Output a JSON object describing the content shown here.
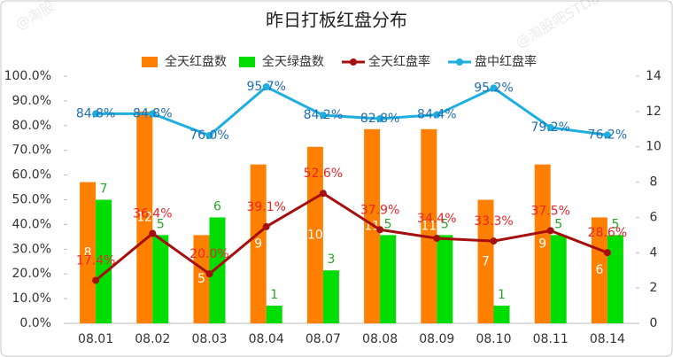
{
  "chart_data": {
    "type": "bar-line",
    "title": "昨日打板红盘分布",
    "categories": [
      "08.01",
      "08.02",
      "08.03",
      "08.04",
      "08.07",
      "08.08",
      "08.09",
      "08.10",
      "08.11",
      "08.14"
    ],
    "series": [
      {
        "name": "全天红盘数",
        "type": "bar",
        "axis": "y2",
        "color": "#ff8000",
        "values": [
          8,
          12,
          5,
          9,
          10,
          11,
          11,
          7,
          9,
          6
        ]
      },
      {
        "name": "全天绿盘数",
        "type": "bar",
        "axis": "y2",
        "color": "#00dd00",
        "values": [
          7,
          5,
          6,
          1,
          3,
          5,
          5,
          1,
          5,
          5
        ]
      },
      {
        "name": "全天红盘率",
        "type": "line",
        "color": "#a50f0f",
        "label_color": "#e8262b",
        "values": [
          17.4,
          36.4,
          20.0,
          39.1,
          52.6,
          37.9,
          34.4,
          33.3,
          37.5,
          28.6
        ],
        "value_labels": [
          "17.4%",
          "36.4%",
          "20.0%",
          "39.1%",
          "52.6%",
          "37.9%",
          "34.4%",
          "33.3%",
          "37.5%",
          "28.6%"
        ]
      },
      {
        "name": "盘中红盘率",
        "type": "line",
        "color": "#1eaee0",
        "label_color": "#1f6fb4",
        "values": [
          84.8,
          84.8,
          76.0,
          95.7,
          84.2,
          82.8,
          84.4,
          95.2,
          79.2,
          76.2
        ],
        "value_labels": [
          "84.8%",
          "84.8%",
          "76.0%",
          "95.7%",
          "84.2%",
          "82.8%",
          "84.4%",
          "95.2%",
          "79.2%",
          "76.2%"
        ]
      }
    ],
    "ylim": [
      0,
      100
    ],
    "yticks": [
      {
        "value": 0,
        "label": "0.0%"
      },
      {
        "value": 10,
        "label": "10.0%"
      },
      {
        "value": 20,
        "label": "20.0%"
      },
      {
        "value": 30,
        "label": "30.0%"
      },
      {
        "value": 40,
        "label": "40.0%"
      },
      {
        "value": 50,
        "label": "50.0%"
      },
      {
        "value": 60,
        "label": "60.0%"
      },
      {
        "value": 70,
        "label": "70.0%"
      },
      {
        "value": 80,
        "label": "80.0%"
      },
      {
        "value": 90,
        "label": "90.0%"
      },
      {
        "value": 100,
        "label": "100.0%"
      }
    ],
    "y2lim": [
      0,
      14
    ],
    "y2ticks": [
      0,
      2,
      4,
      6,
      8,
      10,
      12,
      14
    ],
    "legend": "top",
    "annotations": [
      "@淘股",
      "@淘股吧STDawn"
    ]
  }
}
